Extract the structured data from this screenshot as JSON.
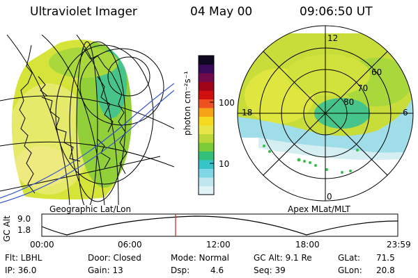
{
  "header": {
    "instrument": "Ultraviolet Imager",
    "date": "04 May 00",
    "time": "09:06:50 UT"
  },
  "map_panel": {
    "label": "Geographic Lat/Lon"
  },
  "polar_panel": {
    "label": "Apex MLat/MLT",
    "mlt_labels": [
      "12",
      "18",
      "6",
      "0"
    ],
    "lat_labels": [
      "60",
      "70",
      "80"
    ]
  },
  "colorbar": {
    "unit_label": "photon cm⁻²s⁻¹",
    "ticks": [
      "100",
      "10"
    ],
    "colors": [
      "#e0f4f8",
      "#bfe6ef",
      "#7fd6e4",
      "#36c4c8",
      "#33c07a",
      "#7ccc3a",
      "#bcd838",
      "#e8e646",
      "#f5d820",
      "#f5a418",
      "#ef5020",
      "#d01010",
      "#a00418",
      "#700a4a",
      "#3a0a5a",
      "#100820"
    ]
  },
  "altitude_plot": {
    "ylabel": "GC Alt",
    "yticks": [
      "9.0",
      "1.8"
    ],
    "xticks": [
      "00:00",
      "06:00",
      "12:00",
      "18:00",
      "23:59"
    ]
  },
  "status": {
    "filter": "Flt: LBHL",
    "ip": "IP: 36.0",
    "door": "Door: Closed",
    "gain": "Gain: 13",
    "mode": "Mode: Normal",
    "dsp_label": "Dsp:",
    "dsp_value": "4.6",
    "gc_alt": "GC Alt: 9.1 Re",
    "seq": "Seq: 39",
    "glat_label": "GLat:",
    "glat_value": "71.5",
    "glon_label": "GLon:",
    "glon_value": "20.8"
  },
  "colors": {
    "current_time_marker": "#cc2222",
    "orbit_line": "#3355cc"
  }
}
